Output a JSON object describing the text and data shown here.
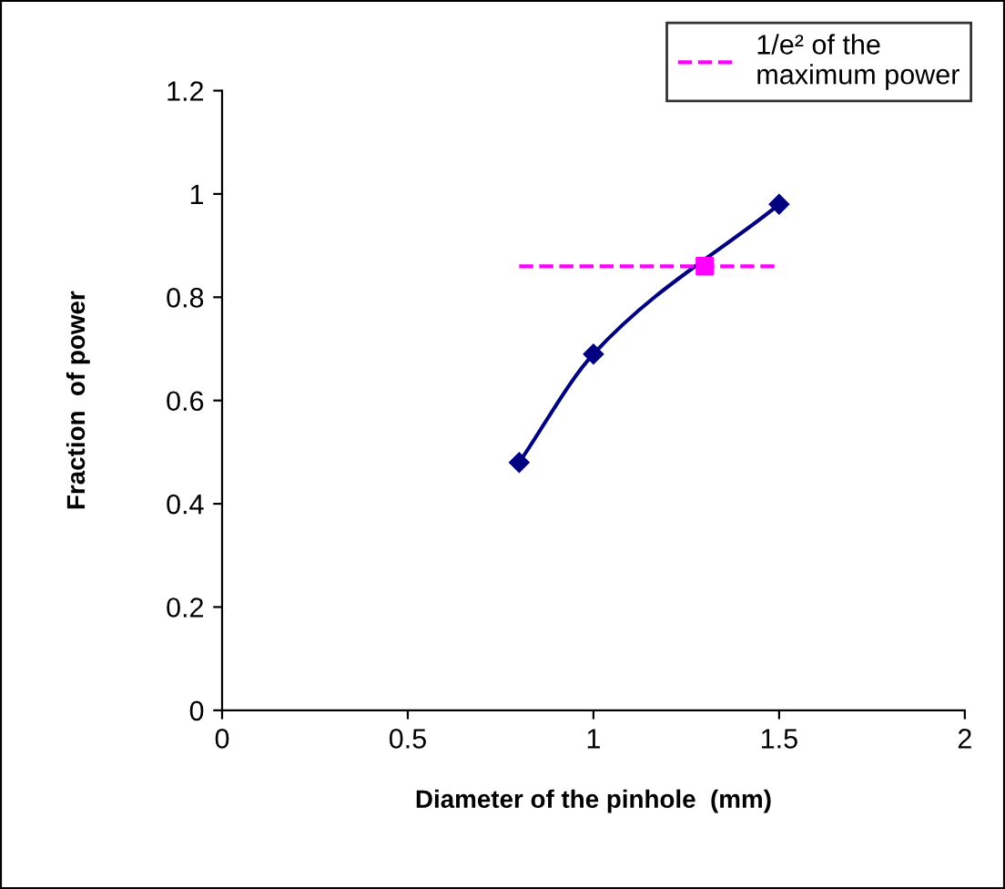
{
  "chart_data": {
    "type": "line",
    "xlabel": "Diameter of the pinhole  (mm)",
    "ylabel": "Fraction  of power",
    "xlim": [
      0,
      2
    ],
    "xticks": [
      0,
      0.5,
      1,
      1.5,
      2
    ],
    "ylim": [
      0,
      1.2
    ],
    "yticks": [
      0,
      0.2,
      0.4,
      0.6,
      0.8,
      1,
      1.2
    ],
    "grid": false,
    "legend": "top right",
    "series": [
      {
        "color": "#000080",
        "x": [
          0.8,
          1.0,
          1.5
        ],
        "values": [
          0.48,
          0.69,
          0.98
        ],
        "marker": "diamond",
        "line_style": "solid"
      },
      {
        "name": "1/e² of the\nmaximum power",
        "color": "#ff00ff",
        "x": [
          0.8,
          1.5
        ],
        "values": [
          0.86,
          0.86
        ],
        "marker": "none",
        "line_style": "dashed"
      },
      {
        "type": "scatter",
        "color": "#ff00ff",
        "x": [
          1.3
        ],
        "values": [
          0.86
        ],
        "marker": "square"
      }
    ]
  }
}
